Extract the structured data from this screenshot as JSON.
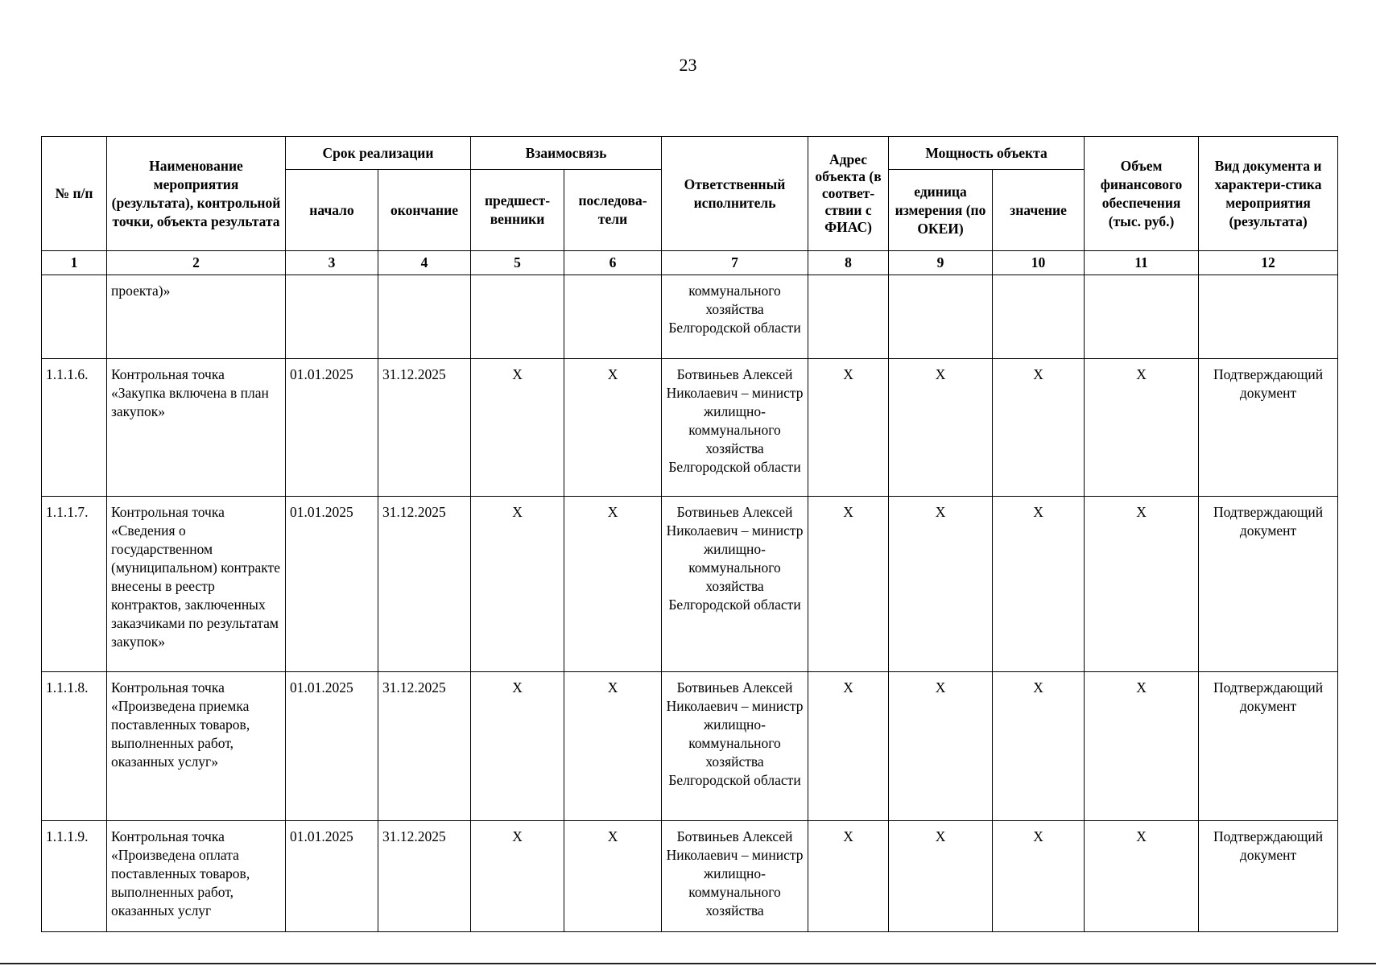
{
  "page_number": "23",
  "header": {
    "num": "№ п/п",
    "name": "Наименование мероприятия (результата), контрольной точки, объекта результата",
    "term": "Срок реализации",
    "term_start": "начало",
    "term_end": "окончание",
    "link": "Взаимосвязь",
    "link_prev": "предшест-венники",
    "link_next": "последова-тели",
    "responsible": "Ответственный исполнитель",
    "address": "Адрес объекта (в соответ-ствии с ФИАС)",
    "capacity": "Мощность объекта",
    "unit": "единица измерения (по ОКЕИ)",
    "value": "значение",
    "finance": "Объем финансового обеспечения (тыс. руб.)",
    "doc": "Вид документа и характери-стика мероприятия (результата)"
  },
  "column_numbers": [
    "1",
    "2",
    "3",
    "4",
    "5",
    "6",
    "7",
    "8",
    "9",
    "10",
    "11",
    "12"
  ],
  "rows": [
    {
      "num": "",
      "name": "проекта)»",
      "start": "",
      "end": "",
      "prev": "",
      "next": "",
      "responsible": "коммунального хозяйства Белгородской области",
      "address": "",
      "unit": "",
      "value": "",
      "finance": "",
      "doc": ""
    },
    {
      "num": "1.1.1.6.",
      "name": "Контрольная точка «Закупка включена в план закупок»",
      "start": "01.01.2025",
      "end": "31.12.2025",
      "prev": "X",
      "next": "X",
      "responsible": "Ботвиньев Алексей Николаевич – министр жилищно-коммунального хозяйства Белгородской области",
      "address": "X",
      "unit": "X",
      "value": "X",
      "finance": "X",
      "doc": "Подтверждающий документ"
    },
    {
      "num": "1.1.1.7.",
      "name": "Контрольная точка «Сведения о государственном (муниципальном) контракте внесены в реестр контрактов, заключенных заказчиками по результатам закупок»",
      "start": "01.01.2025",
      "end": "31.12.2025",
      "prev": "X",
      "next": "X",
      "responsible": "Ботвиньев Алексей Николаевич – министр жилищно-коммунального хозяйства Белгородской области",
      "address": "X",
      "unit": "X",
      "value": "X",
      "finance": "X",
      "doc": "Подтверждающий документ"
    },
    {
      "num": "1.1.1.8.",
      "name": "Контрольная точка «Произведена приемка поставленных товаров, выполненных работ, оказанных услуг»",
      "start": "01.01.2025",
      "end": "31.12.2025",
      "prev": "X",
      "next": "X",
      "responsible": "Ботвиньев Алексей Николаевич – министр жилищно-коммунального хозяйства Белгородской области",
      "address": "X",
      "unit": "X",
      "value": "X",
      "finance": "X",
      "doc": "Подтверждающий документ"
    },
    {
      "num": "1.1.1.9.",
      "name": "Контрольная точка «Произведена оплата поставленных товаров, выполненных работ, оказанных услуг",
      "start": "01.01.2025",
      "end": "31.12.2025",
      "prev": "X",
      "next": "X",
      "responsible": "Ботвиньев Алексей Николаевич – министр жилищно-коммунального хозяйства",
      "address": "X",
      "unit": "X",
      "value": "X",
      "finance": "X",
      "doc": "Подтверждающий документ"
    }
  ]
}
